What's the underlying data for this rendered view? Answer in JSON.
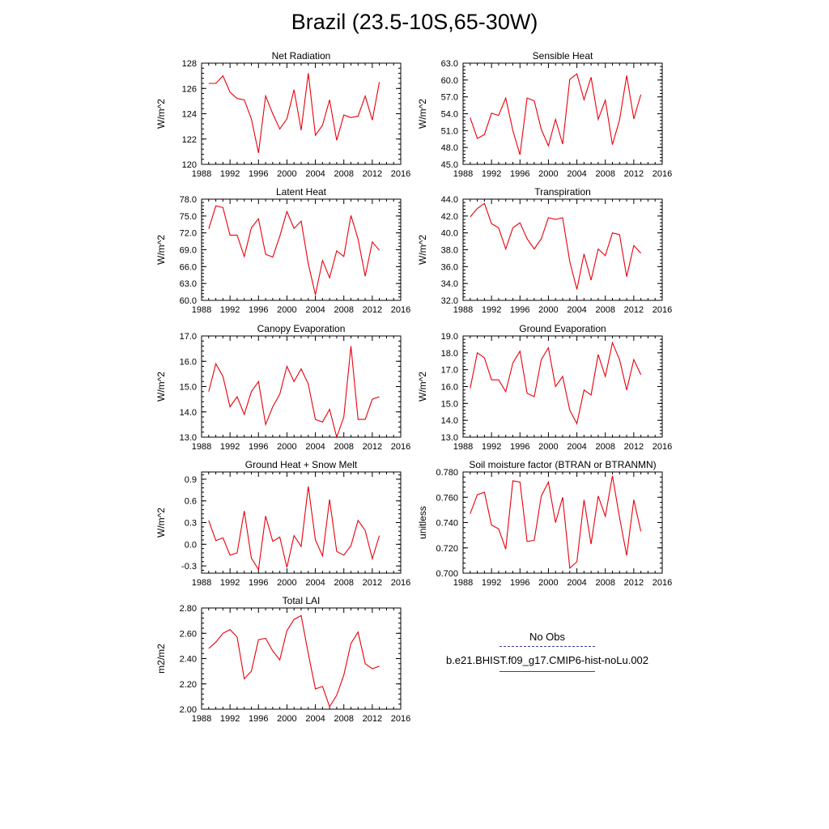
{
  "page_title": "Brazil (23.5-10S,65-30W)",
  "legend": {
    "items": [
      {
        "label": "No Obs",
        "color": "#3a3a9a",
        "style": "dashed"
      },
      {
        "label": "b.e21.BHIST.f09_g17.CMIP6-hist-noLu.002",
        "color": "#e8000b",
        "style": "solid"
      }
    ]
  },
  "chart_data": [
    {
      "type": "line",
      "title": "Net Radiation",
      "ylabel": "W/m^2",
      "xlim": [
        1988,
        2016
      ],
      "xticks": [
        "1988",
        "1992",
        "1996",
        "2000",
        "2004",
        "2008",
        "2012",
        "2016"
      ],
      "ylim": [
        120,
        128
      ],
      "yticks": [
        "120",
        "122",
        "124",
        "126",
        "128"
      ],
      "x": [
        1989,
        1990,
        1991,
        1992,
        1993,
        1994,
        1995,
        1996,
        1997,
        1998,
        1999,
        2000,
        2001,
        2002,
        2003,
        2004,
        2005,
        2006,
        2007,
        2008,
        2009,
        2010,
        2011,
        2012,
        2013
      ],
      "series": [
        {
          "values": [
            126.4,
            126.4,
            127.0,
            125.7,
            125.2,
            125.1,
            123.6,
            120.9,
            125.4,
            124.0,
            122.8,
            123.6,
            125.9,
            122.7,
            127.2,
            122.3,
            123.1,
            125.1,
            121.9,
            123.9,
            123.7,
            123.8,
            125.4,
            123.5,
            126.5
          ],
          "color": "#e8000b"
        }
      ]
    },
    {
      "type": "line",
      "title": "Sensible Heat",
      "ylabel": "W/m^2",
      "xlim": [
        1988,
        2016
      ],
      "xticks": [
        "1988",
        "1992",
        "1996",
        "2000",
        "2004",
        "2008",
        "2012",
        "2016"
      ],
      "ylim": [
        45,
        63
      ],
      "yticks": [
        "45.0",
        "48.0",
        "51.0",
        "54.0",
        "57.0",
        "60.0",
        "63.0"
      ],
      "x": [
        1989,
        1990,
        1991,
        1992,
        1993,
        1994,
        1995,
        1996,
        1997,
        1998,
        1999,
        2000,
        2001,
        2002,
        2003,
        2004,
        2005,
        2006,
        2007,
        2008,
        2009,
        2010,
        2011,
        2012,
        2013
      ],
      "series": [
        {
          "values": [
            53.3,
            49.6,
            50.3,
            54.1,
            53.7,
            56.8,
            51.0,
            46.7,
            56.8,
            56.3,
            51.2,
            48.3,
            53.0,
            48.6,
            60.1,
            61.1,
            56.5,
            60.5,
            53.0,
            56.4,
            48.5,
            52.9,
            60.8,
            53.1,
            57.4
          ],
          "color": "#e8000b"
        }
      ]
    },
    {
      "type": "line",
      "title": "Latent Heat",
      "ylabel": "W/m^2",
      "xlim": [
        1988,
        2016
      ],
      "xticks": [
        "1988",
        "1992",
        "1996",
        "2000",
        "2004",
        "2008",
        "2012",
        "2016"
      ],
      "ylim": [
        60,
        78
      ],
      "yticks": [
        "60.0",
        "63.0",
        "66.0",
        "69.0",
        "72.0",
        "75.0",
        "78.0"
      ],
      "x": [
        1989,
        1990,
        1991,
        1992,
        1993,
        1994,
        1995,
        1996,
        1997,
        1998,
        1999,
        2000,
        2001,
        2002,
        2003,
        2004,
        2005,
        2006,
        2007,
        2008,
        2009,
        2010,
        2011,
        2012,
        2013
      ],
      "series": [
        {
          "values": [
            72.7,
            76.8,
            76.5,
            71.6,
            71.6,
            67.8,
            72.9,
            74.5,
            68.2,
            67.7,
            71.4,
            75.8,
            72.8,
            74.1,
            66.5,
            61.0,
            67.1,
            64.0,
            68.8,
            67.8,
            75.1,
            70.9,
            64.3,
            70.4,
            68.9
          ],
          "color": "#e8000b"
        }
      ]
    },
    {
      "type": "line",
      "title": "Transpiration",
      "ylabel": "W/m^2",
      "xlim": [
        1988,
        2016
      ],
      "xticks": [
        "1988",
        "1992",
        "1996",
        "2000",
        "2004",
        "2008",
        "2012",
        "2016"
      ],
      "ylim": [
        32,
        44
      ],
      "yticks": [
        "32.0",
        "34.0",
        "36.0",
        "38.0",
        "40.0",
        "42.0",
        "44.0"
      ],
      "x": [
        1989,
        1990,
        1991,
        1992,
        1993,
        1994,
        1995,
        1996,
        1997,
        1998,
        1999,
        2000,
        2001,
        2002,
        2003,
        2004,
        2005,
        2006,
        2007,
        2008,
        2009,
        2010,
        2011,
        2012,
        2013
      ],
      "series": [
        {
          "values": [
            41.9,
            42.9,
            43.5,
            41.1,
            40.6,
            38.1,
            40.6,
            41.2,
            39.3,
            38.1,
            39.3,
            41.8,
            41.6,
            41.8,
            36.6,
            33.3,
            37.5,
            34.4,
            38.1,
            37.3,
            40.0,
            39.8,
            34.8,
            38.5,
            37.6
          ],
          "color": "#e8000b"
        }
      ]
    },
    {
      "type": "line",
      "title": "Canopy Evaporation",
      "ylabel": "W/m^2",
      "xlim": [
        1988,
        2016
      ],
      "xticks": [
        "1988",
        "1992",
        "1996",
        "2000",
        "2004",
        "2008",
        "2012",
        "2016"
      ],
      "ylim": [
        13,
        17
      ],
      "yticks": [
        "13.0",
        "14.0",
        "15.0",
        "16.0",
        "17.0"
      ],
      "x": [
        1989,
        1990,
        1991,
        1992,
        1993,
        1994,
        1995,
        1996,
        1997,
        1998,
        1999,
        2000,
        2001,
        2002,
        2003,
        2004,
        2005,
        2006,
        2007,
        2008,
        2009,
        2010,
        2011,
        2012,
        2013
      ],
      "series": [
        {
          "values": [
            14.8,
            15.9,
            15.4,
            14.2,
            14.6,
            13.9,
            14.8,
            15.2,
            13.5,
            14.2,
            14.7,
            15.8,
            15.2,
            15.7,
            15.1,
            13.7,
            13.6,
            14.1,
            13.0,
            13.8,
            16.6,
            13.7,
            13.7,
            14.5,
            14.6
          ],
          "color": "#e8000b"
        }
      ]
    },
    {
      "type": "line",
      "title": "Ground Evaporation",
      "ylabel": "W/m^2",
      "xlim": [
        1988,
        2016
      ],
      "xticks": [
        "1988",
        "1992",
        "1996",
        "2000",
        "2004",
        "2008",
        "2012",
        "2016"
      ],
      "ylim": [
        13,
        19
      ],
      "yticks": [
        "13.0",
        "14.0",
        "15.0",
        "16.0",
        "17.0",
        "18.0",
        "19.0"
      ],
      "x": [
        1989,
        1990,
        1991,
        1992,
        1993,
        1994,
        1995,
        1996,
        1997,
        1998,
        1999,
        2000,
        2001,
        2002,
        2003,
        2004,
        2005,
        2006,
        2007,
        2008,
        2009,
        2010,
        2011,
        2012,
        2013
      ],
      "series": [
        {
          "values": [
            15.9,
            18.0,
            17.7,
            16.4,
            16.4,
            15.7,
            17.4,
            18.1,
            15.6,
            15.4,
            17.6,
            18.3,
            16.0,
            16.6,
            14.6,
            13.8,
            15.8,
            15.5,
            17.9,
            16.6,
            18.6,
            17.6,
            15.8,
            17.6,
            16.7
          ],
          "color": "#e8000b"
        }
      ]
    },
    {
      "type": "line",
      "title": "Ground Heat + Snow Melt",
      "ylabel": "W/m^2",
      "xlim": [
        1988,
        2016
      ],
      "xticks": [
        "1988",
        "1992",
        "1996",
        "2000",
        "2004",
        "2008",
        "2012",
        "2016"
      ],
      "ylim": [
        -0.4,
        1.0
      ],
      "yticks": [
        "-0.3",
        "0.0",
        "0.3",
        "0.6",
        "0.9"
      ],
      "yticks_at": [
        -0.3,
        0.0,
        0.3,
        0.6,
        0.9
      ],
      "x": [
        1989,
        1990,
        1991,
        1992,
        1993,
        1994,
        1995,
        1996,
        1997,
        1998,
        1999,
        2000,
        2001,
        2002,
        2003,
        2004,
        2005,
        2006,
        2007,
        2008,
        2009,
        2010,
        2011,
        2012,
        2013
      ],
      "series": [
        {
          "values": [
            0.33,
            0.05,
            0.09,
            -0.15,
            -0.12,
            0.46,
            -0.19,
            -0.35,
            0.39,
            0.04,
            0.1,
            -0.32,
            0.12,
            -0.03,
            0.8,
            0.06,
            -0.16,
            0.62,
            -0.1,
            -0.15,
            -0.02,
            0.33,
            0.19,
            -0.2,
            0.12
          ],
          "color": "#e8000b"
        }
      ]
    },
    {
      "type": "line",
      "title": "Soil moisture factor (BTRAN or BTRANMN)",
      "ylabel": "unitless",
      "xlim": [
        1988,
        2016
      ],
      "xticks": [
        "1988",
        "1992",
        "1996",
        "2000",
        "2004",
        "2008",
        "2012",
        "2016"
      ],
      "ylim": [
        0.7,
        0.78
      ],
      "yticks": [
        "0.700",
        "0.720",
        "0.740",
        "0.760",
        "0.780"
      ],
      "x": [
        1989,
        1990,
        1991,
        1992,
        1993,
        1994,
        1995,
        1996,
        1997,
        1998,
        1999,
        2000,
        2001,
        2002,
        2003,
        2004,
        2005,
        2006,
        2007,
        2008,
        2009,
        2010,
        2011,
        2012,
        2013
      ],
      "series": [
        {
          "values": [
            0.747,
            0.762,
            0.764,
            0.738,
            0.735,
            0.719,
            0.773,
            0.772,
            0.725,
            0.726,
            0.761,
            0.772,
            0.74,
            0.76,
            0.704,
            0.709,
            0.758,
            0.723,
            0.761,
            0.745,
            0.777,
            0.744,
            0.714,
            0.758,
            0.733
          ],
          "color": "#e8000b"
        }
      ]
    },
    {
      "type": "line",
      "title": "Total LAI",
      "ylabel": "m2/m2",
      "xlim": [
        1988,
        2016
      ],
      "xticks": [
        "1988",
        "1992",
        "1996",
        "2000",
        "2004",
        "2008",
        "2012",
        "2016"
      ],
      "ylim": [
        2.0,
        2.8
      ],
      "yticks": [
        "2.00",
        "2.20",
        "2.40",
        "2.60",
        "2.80"
      ],
      "x": [
        1989,
        1990,
        1991,
        1992,
        1993,
        1994,
        1995,
        1996,
        1997,
        1998,
        1999,
        2000,
        2001,
        2002,
        2003,
        2004,
        2005,
        2006,
        2007,
        2008,
        2009,
        2010,
        2011,
        2012,
        2013
      ],
      "series": [
        {
          "values": [
            2.48,
            2.53,
            2.6,
            2.63,
            2.57,
            2.24,
            2.3,
            2.55,
            2.56,
            2.46,
            2.39,
            2.62,
            2.71,
            2.74,
            2.44,
            2.16,
            2.18,
            2.02,
            2.11,
            2.27,
            2.52,
            2.61,
            2.36,
            2.32,
            2.34
          ],
          "color": "#e8000b"
        }
      ]
    }
  ]
}
